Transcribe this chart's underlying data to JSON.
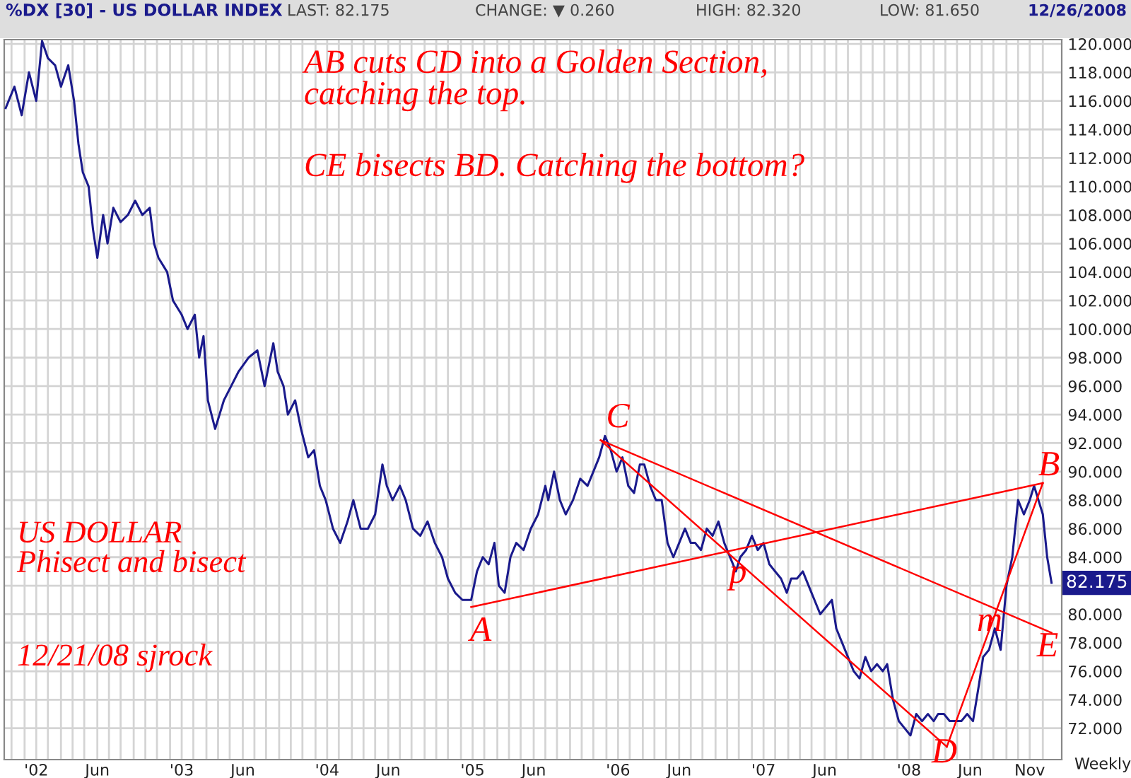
{
  "chart_data": {
    "type": "line",
    "title": "%DX [30] - US DOLLAR INDEX",
    "xlabel": "Weekly",
    "series": [
      {
        "color": "#1a1a8c",
        "x": [
          2001.79,
          2001.85,
          2001.9,
          2001.95,
          2002.0,
          2002.04,
          2002.08,
          2002.13,
          2002.17,
          2002.22,
          2002.26,
          2002.29,
          2002.32,
          2002.36,
          2002.39,
          2002.42,
          2002.46,
          2002.49,
          2002.53,
          2002.58,
          2002.63,
          2002.68,
          2002.73,
          2002.78,
          2002.81,
          2002.84,
          2002.9,
          2002.94,
          2003.0,
          2003.04,
          2003.09,
          2003.12,
          2003.15,
          2003.18,
          2003.23,
          2003.29,
          2003.34,
          2003.39,
          2003.46,
          2003.52,
          2003.57,
          2003.63,
          2003.66,
          2003.7,
          2003.73,
          2003.78,
          2003.82,
          2003.87,
          2003.91,
          2003.95,
          2003.99,
          2004.04,
          2004.09,
          2004.14,
          2004.18,
          2004.23,
          2004.28,
          2004.33,
          2004.38,
          2004.41,
          2004.45,
          2004.5,
          2004.54,
          2004.59,
          2004.64,
          2004.69,
          2004.74,
          2004.79,
          2004.83,
          2004.88,
          2004.93,
          2004.99,
          2005.03,
          2005.07,
          2005.11,
          2005.15,
          2005.18,
          2005.22,
          2005.26,
          2005.3,
          2005.35,
          2005.4,
          2005.45,
          2005.5,
          2005.52,
          2005.56,
          2005.6,
          2005.64,
          2005.69,
          2005.74,
          2005.79,
          2005.83,
          2005.87,
          2005.91,
          2005.95,
          2005.99,
          2006.03,
          2006.07,
          2006.11,
          2006.15,
          2006.18,
          2006.22,
          2006.26,
          2006.3,
          2006.34,
          2006.38,
          2006.42,
          2006.46,
          2006.5,
          2006.53,
          2006.57,
          2006.61,
          2006.65,
          2006.69,
          2006.73,
          2006.77,
          2006.81,
          2006.84,
          2006.88,
          2006.92,
          2006.96,
          2007.0,
          2007.04,
          2007.08,
          2007.12,
          2007.16,
          2007.19,
          2007.23,
          2007.27,
          2007.31,
          2007.35,
          2007.39,
          2007.43,
          2007.47,
          2007.5,
          2007.54,
          2007.58,
          2007.62,
          2007.66,
          2007.7,
          2007.74,
          2007.78,
          2007.82,
          2007.85,
          2007.89,
          2007.93,
          2007.97,
          2008.01,
          2008.05,
          2008.09,
          2008.13,
          2008.17,
          2008.2,
          2008.24,
          2008.28,
          2008.32,
          2008.36,
          2008.4,
          2008.44,
          2008.48,
          2008.51,
          2008.55,
          2008.59,
          2008.63,
          2008.67,
          2008.71,
          2008.75,
          2008.79,
          2008.83,
          2008.86,
          2008.89,
          2008.92,
          2008.95,
          2008.98
        ],
        "values": [
          115.5,
          117,
          115,
          118,
          116,
          120.2,
          119,
          118.5,
          117,
          118.5,
          116,
          113,
          111,
          110,
          107,
          105,
          108,
          106,
          108.5,
          107.5,
          108,
          109,
          108,
          108.5,
          106,
          105,
          104,
          102,
          101,
          100,
          101,
          98,
          99.5,
          95,
          93,
          95,
          96,
          97,
          98,
          98.5,
          96,
          99,
          97,
          96,
          94,
          95,
          93,
          91,
          91.5,
          89,
          88,
          86,
          85,
          86.5,
          88,
          86,
          86,
          87,
          90.5,
          89,
          88,
          89,
          88,
          86,
          85.5,
          86.5,
          85,
          84,
          82.5,
          81.5,
          81,
          81,
          83,
          84,
          83.5,
          85,
          82,
          81.5,
          84,
          85,
          84.5,
          86,
          87,
          89,
          88,
          90,
          88,
          87,
          88,
          89.5,
          89,
          90,
          91,
          92.5,
          91.5,
          90,
          91,
          89,
          88.5,
          90.5,
          90.5,
          89,
          88,
          88,
          85,
          84,
          85,
          86,
          85,
          85,
          84.5,
          86,
          85.5,
          86.5,
          85,
          84,
          83,
          84,
          84.5,
          85.5,
          84.5,
          85,
          83.5,
          83,
          82.5,
          81.5,
          82.5,
          82.5,
          83,
          82,
          81,
          80,
          80.5,
          81,
          79,
          78,
          77,
          76,
          75.5,
          77,
          76,
          76.5,
          76,
          76.5,
          74,
          72.5,
          72,
          71.5,
          73,
          72.5,
          73,
          72.5,
          73,
          73,
          72.5,
          72.5,
          72.5,
          73,
          72.5,
          75,
          77,
          77.5,
          79,
          77.5,
          82,
          84,
          88,
          87,
          88,
          89,
          88,
          87,
          84,
          82.2
        ]
      },
      {
        "type": "line",
        "color": "#ff0000",
        "x": [
          2004.99,
          2008.92
        ],
        "values": [
          80.5,
          89.2
        ]
      },
      {
        "type": "line",
        "color": "#ff0000",
        "x": [
          2005.88,
          2008.26
        ],
        "values": [
          92.2,
          70.7
        ]
      },
      {
        "type": "line",
        "color": "#ff0000",
        "x": [
          2005.88,
          2008.98
        ],
        "values": [
          92.2,
          78.7
        ]
      },
      {
        "type": "line",
        "color": "#ff0000",
        "x": [
          2008.26,
          2008.92
        ],
        "values": [
          70.7,
          89.2
        ]
      }
    ],
    "annotations": [
      "LAST: 82.175",
      "CHANGE: ▼ 0.260",
      "HIGH: 82.320",
      "LOW: 81.650",
      "12/26/2008",
      "AB cuts CD into a Golden Section,\ncatching the top.",
      "CE bisects BD. Catching the bottom?",
      "US DOLLAR\nPhisect and bisect",
      "12/21/08 sjrock",
      "A",
      "B",
      "C",
      "D",
      "E",
      "p",
      "m",
      "82.175"
    ],
    "xlim": [
      2001.78,
      2009.05
    ],
    "ylim": [
      69.8,
      120.3
    ],
    "xticks": [
      {
        "value": 2001.83,
        "label": null
      },
      {
        "value": 2001.92,
        "label": null
      },
      {
        "value": 2002.0,
        "label": "'02"
      },
      {
        "value": 2002.08,
        "label": null
      },
      {
        "value": 2002.17,
        "label": null
      },
      {
        "value": 2002.25,
        "label": null
      },
      {
        "value": 2002.33,
        "label": null
      },
      {
        "value": 2002.42,
        "label": "Jun"
      },
      {
        "value": 2002.5,
        "label": null
      },
      {
        "value": 2002.58,
        "label": null
      },
      {
        "value": 2002.67,
        "label": null
      },
      {
        "value": 2002.75,
        "label": null
      },
      {
        "value": 2002.83,
        "label": null
      },
      {
        "value": 2002.92,
        "label": null
      },
      {
        "value": 2003.0,
        "label": "'03"
      },
      {
        "value": 2003.08,
        "label": null
      },
      {
        "value": 2003.17,
        "label": null
      },
      {
        "value": 2003.25,
        "label": null
      },
      {
        "value": 2003.33,
        "label": null
      },
      {
        "value": 2003.42,
        "label": "Jun"
      },
      {
        "value": 2003.5,
        "label": null
      },
      {
        "value": 2003.58,
        "label": null
      },
      {
        "value": 2003.67,
        "label": null
      },
      {
        "value": 2003.75,
        "label": null
      },
      {
        "value": 2003.83,
        "label": null
      },
      {
        "value": 2003.92,
        "label": null
      },
      {
        "value": 2004.0,
        "label": "'04"
      },
      {
        "value": 2004.08,
        "label": null
      },
      {
        "value": 2004.17,
        "label": null
      },
      {
        "value": 2004.25,
        "label": null
      },
      {
        "value": 2004.33,
        "label": null
      },
      {
        "value": 2004.42,
        "label": "Jun"
      },
      {
        "value": 2004.5,
        "label": null
      },
      {
        "value": 2004.58,
        "label": null
      },
      {
        "value": 2004.67,
        "label": null
      },
      {
        "value": 2004.75,
        "label": null
      },
      {
        "value": 2004.83,
        "label": null
      },
      {
        "value": 2004.92,
        "label": null
      },
      {
        "value": 2005.0,
        "label": "'05"
      },
      {
        "value": 2005.08,
        "label": null
      },
      {
        "value": 2005.17,
        "label": null
      },
      {
        "value": 2005.25,
        "label": null
      },
      {
        "value": 2005.33,
        "label": null
      },
      {
        "value": 2005.42,
        "label": "Jun"
      },
      {
        "value": 2005.5,
        "label": null
      },
      {
        "value": 2005.58,
        "label": null
      },
      {
        "value": 2005.67,
        "label": null
      },
      {
        "value": 2005.75,
        "label": null
      },
      {
        "value": 2005.83,
        "label": null
      },
      {
        "value": 2005.92,
        "label": null
      },
      {
        "value": 2006.0,
        "label": "'06"
      },
      {
        "value": 2006.08,
        "label": null
      },
      {
        "value": 2006.17,
        "label": null
      },
      {
        "value": 2006.25,
        "label": null
      },
      {
        "value": 2006.33,
        "label": null
      },
      {
        "value": 2006.42,
        "label": "Jun"
      },
      {
        "value": 2006.5,
        "label": null
      },
      {
        "value": 2006.58,
        "label": null
      },
      {
        "value": 2006.67,
        "label": null
      },
      {
        "value": 2006.75,
        "label": null
      },
      {
        "value": 2006.83,
        "label": null
      },
      {
        "value": 2006.92,
        "label": null
      },
      {
        "value": 2007.0,
        "label": "'07"
      },
      {
        "value": 2007.08,
        "label": null
      },
      {
        "value": 2007.17,
        "label": null
      },
      {
        "value": 2007.25,
        "label": null
      },
      {
        "value": 2007.33,
        "label": null
      },
      {
        "value": 2007.42,
        "label": "Jun"
      },
      {
        "value": 2007.5,
        "label": null
      },
      {
        "value": 2007.58,
        "label": null
      },
      {
        "value": 2007.67,
        "label": null
      },
      {
        "value": 2007.75,
        "label": null
      },
      {
        "value": 2007.83,
        "label": null
      },
      {
        "value": 2007.92,
        "label": null
      },
      {
        "value": 2008.0,
        "label": "'08"
      },
      {
        "value": 2008.08,
        "label": null
      },
      {
        "value": 2008.17,
        "label": null
      },
      {
        "value": 2008.25,
        "label": null
      },
      {
        "value": 2008.33,
        "label": null
      },
      {
        "value": 2008.42,
        "label": "Jun"
      },
      {
        "value": 2008.5,
        "label": null
      },
      {
        "value": 2008.58,
        "label": null
      },
      {
        "value": 2008.67,
        "label": null
      },
      {
        "value": 2008.75,
        "label": null
      },
      {
        "value": 2008.83,
        "label": "Nov"
      },
      {
        "value": 2008.92,
        "label": null
      }
    ],
    "yticks": [
      {
        "value": 72,
        "label": "72.000"
      },
      {
        "value": 74,
        "label": "74.000"
      },
      {
        "value": 76,
        "label": "76.000"
      },
      {
        "value": 78,
        "label": "78.000"
      },
      {
        "value": 80,
        "label": "80.000"
      },
      {
        "value": 82,
        "label": null
      },
      {
        "value": 84,
        "label": "84.000"
      },
      {
        "value": 86,
        "label": "86.000"
      },
      {
        "value": 88,
        "label": "88.000"
      },
      {
        "value": 90,
        "label": "90.000"
      },
      {
        "value": 92,
        "label": "92.000"
      },
      {
        "value": 94,
        "label": "94.000"
      },
      {
        "value": 96,
        "label": "96.000"
      },
      {
        "value": 98,
        "label": "98.000"
      },
      {
        "value": 100,
        "label": "100.000"
      },
      {
        "value": 102,
        "label": "102.000"
      },
      {
        "value": 104,
        "label": "104.000"
      },
      {
        "value": 106,
        "label": "106.000"
      },
      {
        "value": 108,
        "label": "108.000"
      },
      {
        "value": 110,
        "label": "110.000"
      },
      {
        "value": 112,
        "label": "112.000"
      },
      {
        "value": 114,
        "label": "114.000"
      },
      {
        "value": 116,
        "label": "116.000"
      },
      {
        "value": 118,
        "label": "118.000"
      },
      {
        "value": 120,
        "label": "120.000"
      }
    ],
    "grid": true,
    "legend": false
  }
}
